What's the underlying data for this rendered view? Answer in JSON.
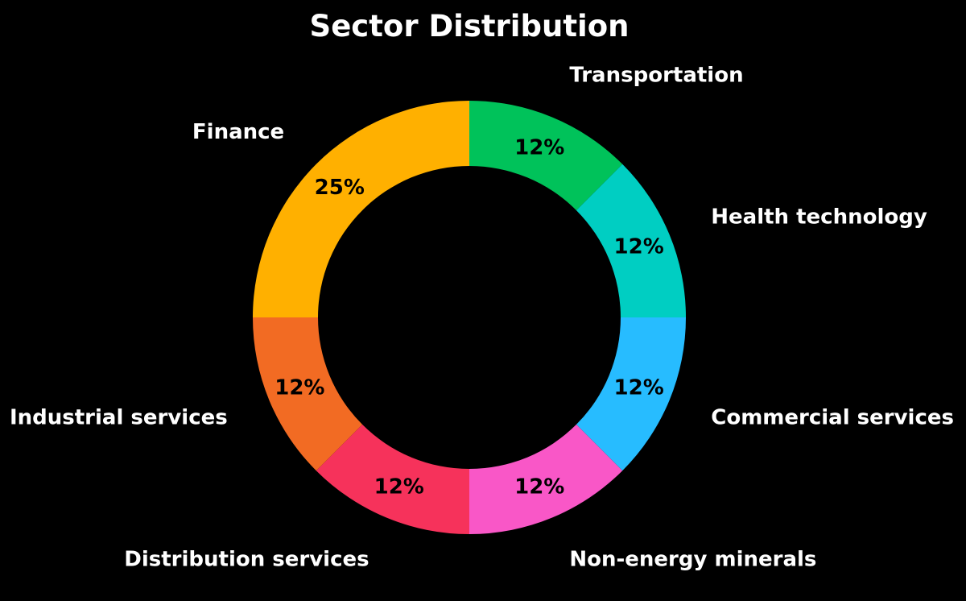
{
  "chart_data": {
    "type": "pie",
    "style": "donut",
    "title": "Sector Distribution",
    "start_angle_deg": 90,
    "direction": "clockwise",
    "background_color": "#000000",
    "text_color": "#ffffff",
    "percent_label_color": "#000000",
    "slices": [
      {
        "label": "Transportation",
        "value": 12.5,
        "percent_label": "12%",
        "color": "#00c25a"
      },
      {
        "label": "Health technology",
        "value": 12.5,
        "percent_label": "12%",
        "color": "#00cec2"
      },
      {
        "label": "Commercial services",
        "value": 12.5,
        "percent_label": "12%",
        "color": "#27bcff"
      },
      {
        "label": "Non-energy minerals",
        "value": 12.5,
        "percent_label": "12%",
        "color": "#f957c7"
      },
      {
        "label": "Distribution services",
        "value": 12.5,
        "percent_label": "12%",
        "color": "#f6325b"
      },
      {
        "label": "Industrial services",
        "value": 12.5,
        "percent_label": "12%",
        "color": "#f26b23"
      },
      {
        "label": "Finance",
        "value": 25,
        "percent_label": "25%",
        "color": "#ffb000"
      }
    ]
  }
}
